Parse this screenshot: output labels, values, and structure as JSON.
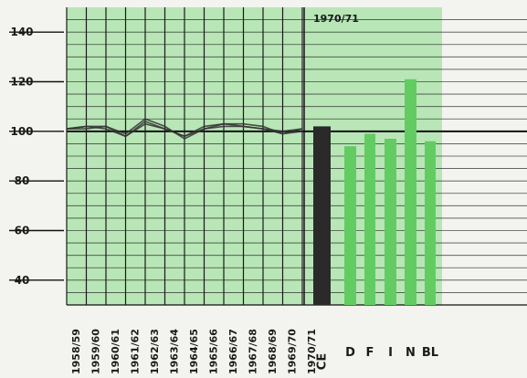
{
  "chart_data": {
    "type": "line",
    "ylim": [
      30,
      150
    ],
    "yticks": [
      40,
      60,
      80,
      100,
      120,
      140
    ],
    "grid": true,
    "categories": [
      "1958/59",
      "1959/60",
      "1960/61",
      "1961/62",
      "1962/63",
      "1963/64",
      "1964/65",
      "1965/66",
      "1966/67",
      "1967/68",
      "1968/69",
      "1969/70",
      "1970/71"
    ],
    "series": [
      {
        "values": [
          101,
          102,
          102,
          98,
          104,
          101,
          98,
          102,
          103,
          103,
          102,
          99,
          101
        ]
      },
      {
        "values": [
          101,
          101,
          102,
          99,
          105,
          102,
          97,
          101,
          102,
          102,
          101,
          100,
          101
        ]
      },
      {
        "values": [
          101,
          102,
          101,
          98,
          103,
          101,
          98,
          101,
          103,
          102,
          101,
          99,
          100
        ]
      }
    ],
    "bar_panel": {
      "period_label": "1970/71",
      "bars": [
        {
          "label": "CE",
          "value": 102,
          "color": "#2a2a2a"
        },
        {
          "label": "D",
          "value": 94,
          "color": "#62cc62"
        },
        {
          "label": "F",
          "value": 99,
          "color": "#62cc62"
        },
        {
          "label": "I",
          "value": 97,
          "color": "#62cc62"
        },
        {
          "label": "N",
          "value": 121,
          "color": "#62cc62"
        },
        {
          "label": "BL",
          "value": 96,
          "color": "#62cc62"
        }
      ]
    },
    "colors": {
      "background_band": "#b8e6b6",
      "grid": "#1a1a1a",
      "line": "#333333"
    }
  }
}
